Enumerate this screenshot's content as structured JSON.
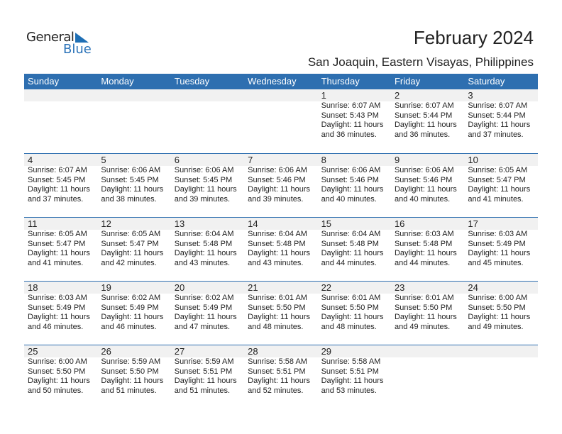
{
  "logo": {
    "line1": "General",
    "line2": "Blue"
  },
  "title": "February 2024",
  "location": "San Joaquin, Eastern Visayas, Philippines",
  "weekdays": [
    "Sunday",
    "Monday",
    "Tuesday",
    "Wednesday",
    "Thursday",
    "Friday",
    "Saturday"
  ],
  "weeks": [
    [
      null,
      null,
      null,
      null,
      {
        "day": "1",
        "sunrise": "Sunrise: 6:07 AM",
        "sunset": "Sunset: 5:43 PM",
        "daylight1": "Daylight: 11 hours",
        "daylight2": "and 36 minutes."
      },
      {
        "day": "2",
        "sunrise": "Sunrise: 6:07 AM",
        "sunset": "Sunset: 5:44 PM",
        "daylight1": "Daylight: 11 hours",
        "daylight2": "and 36 minutes."
      },
      {
        "day": "3",
        "sunrise": "Sunrise: 6:07 AM",
        "sunset": "Sunset: 5:44 PM",
        "daylight1": "Daylight: 11 hours",
        "daylight2": "and 37 minutes."
      }
    ],
    [
      {
        "day": "4",
        "sunrise": "Sunrise: 6:07 AM",
        "sunset": "Sunset: 5:45 PM",
        "daylight1": "Daylight: 11 hours",
        "daylight2": "and 37 minutes."
      },
      {
        "day": "5",
        "sunrise": "Sunrise: 6:06 AM",
        "sunset": "Sunset: 5:45 PM",
        "daylight1": "Daylight: 11 hours",
        "daylight2": "and 38 minutes."
      },
      {
        "day": "6",
        "sunrise": "Sunrise: 6:06 AM",
        "sunset": "Sunset: 5:45 PM",
        "daylight1": "Daylight: 11 hours",
        "daylight2": "and 39 minutes."
      },
      {
        "day": "7",
        "sunrise": "Sunrise: 6:06 AM",
        "sunset": "Sunset: 5:46 PM",
        "daylight1": "Daylight: 11 hours",
        "daylight2": "and 39 minutes."
      },
      {
        "day": "8",
        "sunrise": "Sunrise: 6:06 AM",
        "sunset": "Sunset: 5:46 PM",
        "daylight1": "Daylight: 11 hours",
        "daylight2": "and 40 minutes."
      },
      {
        "day": "9",
        "sunrise": "Sunrise: 6:06 AM",
        "sunset": "Sunset: 5:46 PM",
        "daylight1": "Daylight: 11 hours",
        "daylight2": "and 40 minutes."
      },
      {
        "day": "10",
        "sunrise": "Sunrise: 6:05 AM",
        "sunset": "Sunset: 5:47 PM",
        "daylight1": "Daylight: 11 hours",
        "daylight2": "and 41 minutes."
      }
    ],
    [
      {
        "day": "11",
        "sunrise": "Sunrise: 6:05 AM",
        "sunset": "Sunset: 5:47 PM",
        "daylight1": "Daylight: 11 hours",
        "daylight2": "and 41 minutes."
      },
      {
        "day": "12",
        "sunrise": "Sunrise: 6:05 AM",
        "sunset": "Sunset: 5:47 PM",
        "daylight1": "Daylight: 11 hours",
        "daylight2": "and 42 minutes."
      },
      {
        "day": "13",
        "sunrise": "Sunrise: 6:04 AM",
        "sunset": "Sunset: 5:48 PM",
        "daylight1": "Daylight: 11 hours",
        "daylight2": "and 43 minutes."
      },
      {
        "day": "14",
        "sunrise": "Sunrise: 6:04 AM",
        "sunset": "Sunset: 5:48 PM",
        "daylight1": "Daylight: 11 hours",
        "daylight2": "and 43 minutes."
      },
      {
        "day": "15",
        "sunrise": "Sunrise: 6:04 AM",
        "sunset": "Sunset: 5:48 PM",
        "daylight1": "Daylight: 11 hours",
        "daylight2": "and 44 minutes."
      },
      {
        "day": "16",
        "sunrise": "Sunrise: 6:03 AM",
        "sunset": "Sunset: 5:48 PM",
        "daylight1": "Daylight: 11 hours",
        "daylight2": "and 44 minutes."
      },
      {
        "day": "17",
        "sunrise": "Sunrise: 6:03 AM",
        "sunset": "Sunset: 5:49 PM",
        "daylight1": "Daylight: 11 hours",
        "daylight2": "and 45 minutes."
      }
    ],
    [
      {
        "day": "18",
        "sunrise": "Sunrise: 6:03 AM",
        "sunset": "Sunset: 5:49 PM",
        "daylight1": "Daylight: 11 hours",
        "daylight2": "and 46 minutes."
      },
      {
        "day": "19",
        "sunrise": "Sunrise: 6:02 AM",
        "sunset": "Sunset: 5:49 PM",
        "daylight1": "Daylight: 11 hours",
        "daylight2": "and 46 minutes."
      },
      {
        "day": "20",
        "sunrise": "Sunrise: 6:02 AM",
        "sunset": "Sunset: 5:49 PM",
        "daylight1": "Daylight: 11 hours",
        "daylight2": "and 47 minutes."
      },
      {
        "day": "21",
        "sunrise": "Sunrise: 6:01 AM",
        "sunset": "Sunset: 5:50 PM",
        "daylight1": "Daylight: 11 hours",
        "daylight2": "and 48 minutes."
      },
      {
        "day": "22",
        "sunrise": "Sunrise: 6:01 AM",
        "sunset": "Sunset: 5:50 PM",
        "daylight1": "Daylight: 11 hours",
        "daylight2": "and 48 minutes."
      },
      {
        "day": "23",
        "sunrise": "Sunrise: 6:01 AM",
        "sunset": "Sunset: 5:50 PM",
        "daylight1": "Daylight: 11 hours",
        "daylight2": "and 49 minutes."
      },
      {
        "day": "24",
        "sunrise": "Sunrise: 6:00 AM",
        "sunset": "Sunset: 5:50 PM",
        "daylight1": "Daylight: 11 hours",
        "daylight2": "and 49 minutes."
      }
    ],
    [
      {
        "day": "25",
        "sunrise": "Sunrise: 6:00 AM",
        "sunset": "Sunset: 5:50 PM",
        "daylight1": "Daylight: 11 hours",
        "daylight2": "and 50 minutes."
      },
      {
        "day": "26",
        "sunrise": "Sunrise: 5:59 AM",
        "sunset": "Sunset: 5:50 PM",
        "daylight1": "Daylight: 11 hours",
        "daylight2": "and 51 minutes."
      },
      {
        "day": "27",
        "sunrise": "Sunrise: 5:59 AM",
        "sunset": "Sunset: 5:51 PM",
        "daylight1": "Daylight: 11 hours",
        "daylight2": "and 51 minutes."
      },
      {
        "day": "28",
        "sunrise": "Sunrise: 5:58 AM",
        "sunset": "Sunset: 5:51 PM",
        "daylight1": "Daylight: 11 hours",
        "daylight2": "and 52 minutes."
      },
      {
        "day": "29",
        "sunrise": "Sunrise: 5:58 AM",
        "sunset": "Sunset: 5:51 PM",
        "daylight1": "Daylight: 11 hours",
        "daylight2": "and 53 minutes."
      },
      null,
      null
    ]
  ]
}
